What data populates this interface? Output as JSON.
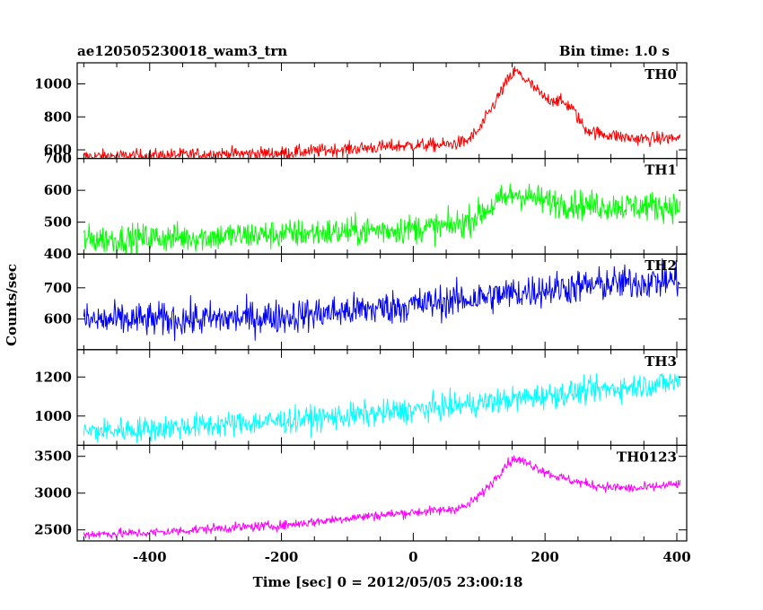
{
  "header": {
    "title": "ae120505230018_wam3_trn",
    "bin_time": "Bin time: 1.0 s"
  },
  "chart_data": {
    "type": "line",
    "title": "ae120505230018_wam3_trn",
    "subtitle": "Bin time: 1.0 s",
    "xlabel": "Time [sec] 0 = 2012/05/05 23:00:18",
    "ylabel": "Counts/sec",
    "xlim": [
      -510,
      415
    ],
    "xticks": [
      -400,
      -200,
      0,
      200,
      400
    ],
    "panels": [
      {
        "name": "TH0",
        "color": "#ff0000",
        "ylim": [
          548,
          1128
        ],
        "yticks": [
          600,
          800,
          1000
        ],
        "points": [
          [
            -500,
            560
          ],
          [
            -400,
            565
          ],
          [
            -300,
            575
          ],
          [
            -200,
            580
          ],
          [
            -100,
            605
          ],
          [
            0,
            628
          ],
          [
            50,
            630
          ],
          [
            80,
            650
          ],
          [
            100,
            720
          ],
          [
            120,
            860
          ],
          [
            140,
            1000
          ],
          [
            155,
            1080
          ],
          [
            175,
            1010
          ],
          [
            200,
            910
          ],
          [
            220,
            900
          ],
          [
            240,
            860
          ],
          [
            260,
            730
          ],
          [
            280,
            700
          ],
          [
            300,
            690
          ],
          [
            330,
            670
          ],
          [
            360,
            665
          ],
          [
            380,
            670
          ],
          [
            400,
            670
          ]
        ],
        "noise": 28
      },
      {
        "name": "TH1",
        "color": "#00ff00",
        "ylim": [
          400,
          700
        ],
        "yticks": [
          400,
          500,
          600,
          700
        ],
        "points": [
          [
            -500,
            445
          ],
          [
            -300,
            455
          ],
          [
            -100,
            470
          ],
          [
            0,
            480
          ],
          [
            50,
            485
          ],
          [
            80,
            500
          ],
          [
            100,
            525
          ],
          [
            130,
            565
          ],
          [
            155,
            590
          ],
          [
            175,
            580
          ],
          [
            200,
            565
          ],
          [
            250,
            555
          ],
          [
            300,
            550
          ],
          [
            400,
            550
          ]
        ],
        "noise": 32
      },
      {
        "name": "TH2",
        "color": "#0000ff",
        "ylim": [
          502,
          808
        ],
        "yticks": [
          600,
          700
        ],
        "points": [
          [
            -500,
            595
          ],
          [
            -300,
            600
          ],
          [
            -200,
            608
          ],
          [
            -100,
            625
          ],
          [
            0,
            645
          ],
          [
            100,
            668
          ],
          [
            200,
            695
          ],
          [
            300,
            712
          ],
          [
            400,
            725
          ]
        ],
        "noise": 38
      },
      {
        "name": "TH3",
        "color": "#00ffff",
        "ylim": [
          850,
          1340
        ],
        "yticks": [
          1000,
          1200
        ],
        "points": [
          [
            -500,
            920
          ],
          [
            -400,
            935
          ],
          [
            -300,
            955
          ],
          [
            -200,
            975
          ],
          [
            -100,
            1000
          ],
          [
            0,
            1030
          ],
          [
            100,
            1065
          ],
          [
            200,
            1105
          ],
          [
            300,
            1140
          ],
          [
            400,
            1175
          ]
        ],
        "noise": 45
      },
      {
        "name": "TH0123",
        "color": "#ff00ff",
        "ylim": [
          2350,
          3650
        ],
        "yticks": [
          2500,
          3000,
          3500
        ],
        "points": [
          [
            -500,
            2440
          ],
          [
            -400,
            2460
          ],
          [
            -300,
            2520
          ],
          [
            -200,
            2560
          ],
          [
            -100,
            2660
          ],
          [
            0,
            2740
          ],
          [
            50,
            2770
          ],
          [
            80,
            2820
          ],
          [
            100,
            2960
          ],
          [
            120,
            3150
          ],
          [
            140,
            3380
          ],
          [
            155,
            3470
          ],
          [
            180,
            3380
          ],
          [
            210,
            3250
          ],
          [
            240,
            3170
          ],
          [
            270,
            3110
          ],
          [
            300,
            3080
          ],
          [
            340,
            3060
          ],
          [
            380,
            3100
          ],
          [
            400,
            3120
          ]
        ],
        "noise": 45
      }
    ]
  }
}
